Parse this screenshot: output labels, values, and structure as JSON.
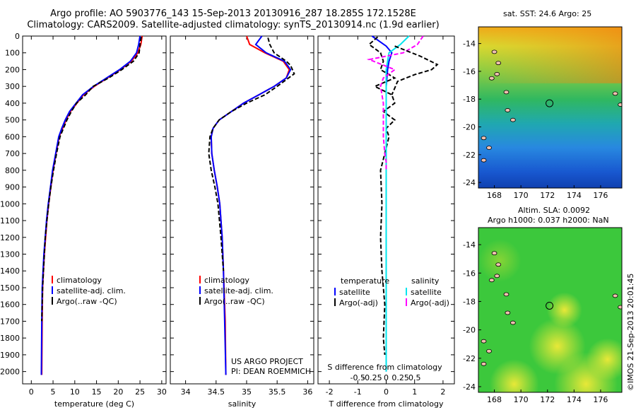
{
  "header": {
    "line1": "Argo profile: AO 5903776_143 15-Sep-2013 20130916_287 18.285S 172.1528E",
    "line2": "Climatology: CARS2009. Satellite-adjusted climatology: synTS_20130914.nc (1.9d earlier)"
  },
  "colors": {
    "climatology": "#ff0000",
    "satellite": "#0000ff",
    "argo": "#000000",
    "salinity_satellite": "#00e5ee",
    "salinity_argo": "#ff00ff"
  },
  "chart_data": [
    {
      "type": "line",
      "id": "temperature",
      "xlabel": "temperature (deg C)",
      "ylabel": "",
      "xlim": [
        -2,
        31
      ],
      "ylim": [
        2050,
        0
      ],
      "xticks": [
        0,
        5,
        10,
        15,
        20,
        25,
        30
      ],
      "xtick_labels": [
        "0",
        "5",
        "10",
        "15",
        "20",
        "25",
        "30"
      ],
      "yticks": [
        0,
        100,
        200,
        300,
        400,
        500,
        600,
        700,
        800,
        900,
        1000,
        1100,
        1200,
        1300,
        1400,
        1500,
        1600,
        1700,
        1800,
        1900,
        2000
      ],
      "ytick_labels": [
        "0",
        "100",
        "200",
        "300",
        "400",
        "500",
        "600",
        "700",
        "800",
        "900",
        "1000",
        "1100",
        "1200",
        "1300",
        "1400",
        "1500",
        "1600",
        "1700",
        "1800",
        "1900",
        "2000"
      ],
      "legend": [
        "climatology",
        "satellite-adj. clim.",
        "Argo(..raw -QC)"
      ],
      "series": [
        {
          "name": "climatology",
          "color": "#ff0000",
          "x": [
            25.5,
            25.2,
            24.5,
            23,
            20.5,
            17.5,
            14.5,
            12,
            10.5,
            9,
            8,
            7.2,
            6.4,
            5.7,
            5,
            4.5,
            4,
            3.6,
            3.3,
            3,
            2.8,
            2.6,
            2.5,
            2.4
          ],
          "y": [
            0,
            50,
            100,
            150,
            200,
            250,
            300,
            350,
            400,
            450,
            500,
            550,
            600,
            700,
            800,
            900,
            1000,
            1100,
            1200,
            1300,
            1400,
            1500,
            1700,
            2020
          ]
        },
        {
          "name": "satellite-adj. clim.",
          "color": "#0000ff",
          "x": [
            25,
            24.7,
            24.2,
            22.8,
            20.3,
            17.3,
            14.3,
            11.8,
            10.3,
            8.8,
            7.8,
            7,
            6.3,
            5.6,
            4.9,
            4.4,
            3.9,
            3.5,
            3.2,
            2.9,
            2.7,
            2.5,
            2.4,
            2.3
          ],
          "y": [
            0,
            50,
            100,
            150,
            200,
            250,
            300,
            350,
            400,
            450,
            500,
            550,
            600,
            700,
            800,
            900,
            1000,
            1100,
            1200,
            1300,
            1400,
            1500,
            1700,
            2020
          ]
        },
        {
          "name": "Argo(..raw -QC)",
          "color": "#000000",
          "x": [
            25.3,
            25,
            24.8,
            23.5,
            20.8,
            17.8,
            14.2,
            12.5,
            10.4,
            9.2,
            8.2,
            7.4,
            6.6,
            5.8,
            5.1,
            4.5,
            4,
            3.6,
            3.2,
            3,
            2.8,
            2.6,
            2.4
          ],
          "y": [
            5,
            50,
            100,
            150,
            200,
            250,
            300,
            350,
            400,
            450,
            500,
            550,
            600,
            700,
            800,
            900,
            1000,
            1100,
            1200,
            1300,
            1400,
            1500,
            1700
          ]
        }
      ]
    },
    {
      "type": "line",
      "id": "salinity",
      "xlabel": "salinity",
      "ylabel": "",
      "xlim": [
        33.75,
        36.1
      ],
      "ylim": [
        2050,
        0
      ],
      "xticks": [
        34,
        34.5,
        35,
        35.5,
        36
      ],
      "xtick_labels": [
        "34",
        "34.5",
        "35",
        "35.5",
        "36"
      ],
      "legend": [
        "climatology",
        "satellite-adj. clim.",
        "Argo(..raw -QC)"
      ],
      "annotation": [
        "US ARGO PROJECT",
        "PI: DEAN ROEMMICH"
      ],
      "series": [
        {
          "name": "climatology",
          "color": "#ff0000",
          "x": [
            35,
            35.05,
            35.3,
            35.6,
            35.7,
            35.65,
            35.45,
            35.2,
            34.95,
            34.75,
            34.55,
            34.45,
            34.42,
            34.43,
            34.47,
            34.52,
            34.56,
            34.6,
            34.62,
            34.65,
            34.66
          ],
          "y": [
            0,
            50,
            100,
            150,
            200,
            250,
            300,
            350,
            400,
            450,
            500,
            550,
            600,
            700,
            800,
            900,
            1000,
            1200,
            1400,
            1700,
            2020
          ]
        },
        {
          "name": "satellite-adj. clim.",
          "color": "#0000ff",
          "x": [
            35.25,
            35.15,
            35.32,
            35.62,
            35.72,
            35.65,
            35.45,
            35.2,
            34.95,
            34.75,
            34.55,
            34.45,
            34.42,
            34.43,
            34.47,
            34.52,
            34.56,
            34.6,
            34.62,
            34.64,
            34.66
          ],
          "y": [
            0,
            50,
            100,
            150,
            200,
            250,
            300,
            350,
            400,
            450,
            500,
            550,
            600,
            700,
            800,
            900,
            1000,
            1200,
            1400,
            1700,
            2020
          ]
        },
        {
          "name": "Argo(..raw -QC)",
          "color": "#000000",
          "x": [
            35.35,
            35.38,
            35.45,
            35.65,
            35.72,
            35.78,
            35.5,
            35.3,
            35,
            34.75,
            34.55,
            34.45,
            34.4,
            34.38,
            34.42,
            34.48,
            34.53,
            34.58,
            34.62
          ],
          "y": [
            10,
            50,
            100,
            150,
            175,
            225,
            300,
            350,
            400,
            450,
            500,
            550,
            600,
            700,
            800,
            900,
            1000,
            1200,
            1400
          ]
        }
      ]
    },
    {
      "type": "line",
      "id": "difference",
      "xlabel": "T difference from climatology",
      "xlabel_top": "S difference from climatology",
      "xlim": [
        -2.4,
        2.4
      ],
      "ylim": [
        2050,
        0
      ],
      "xticks": [
        -2,
        -1,
        0,
        1,
        2
      ],
      "xtick_labels": [
        "-2",
        "-1",
        "0",
        "1",
        "2"
      ],
      "sticks": [
        -1,
        -0.5,
        0,
        0.5,
        1
      ],
      "stick_labels": [
        "-0.5",
        "-0.25",
        "0",
        "0.25",
        "0.5"
      ],
      "legend_temperature": {
        "title": "temperature",
        "items": [
          "satellite",
          "Argo(-adj)"
        ]
      },
      "legend_salinity": {
        "title": "salinity",
        "items": [
          "satellite",
          "Argo(-adj)"
        ]
      },
      "series": [
        {
          "name": "temperature satellite",
          "color": "#0000ff",
          "x": [
            -0.5,
            0,
            0.2,
            0.1,
            0.05,
            0,
            0,
            0,
            0,
            0,
            0,
            0
          ],
          "y": [
            0,
            60,
            100,
            150,
            200,
            300,
            500,
            800,
            1100,
            1400,
            1700,
            2000
          ]
        },
        {
          "name": "temperature Argo(-adj)",
          "color": "#000000",
          "x": [
            -0.3,
            -0.6,
            -0.2,
            -0.1,
            -0.2,
            0.3,
            -0.4,
            0.2,
            0.3,
            -0.1,
            0.3,
            0,
            0.1,
            -0.2,
            -0.15,
            -0.2,
            -0.15,
            -0.05,
            -0.1,
            -0.05
          ],
          "y": [
            5,
            50,
            100,
            150,
            200,
            250,
            300,
            350,
            400,
            450,
            500,
            550,
            600,
            800,
            1000,
            1200,
            1400,
            1600,
            1800,
            1900
          ]
        },
        {
          "name": "salinity satellite",
          "color": "#00e5ee",
          "x": [
            0.8,
            0.5,
            0.1,
            0.05,
            0,
            0,
            0,
            0,
            0,
            0,
            0,
            0
          ],
          "y": [
            0,
            50,
            100,
            150,
            200,
            300,
            500,
            800,
            1100,
            1400,
            1700,
            2000
          ]
        },
        {
          "name": "salinity Argo(-adj)",
          "color": "#ff00ff",
          "x": [
            1.3,
            1.1,
            0.6,
            -0.6,
            0.3,
            -0.1,
            -0.2,
            -0.1,
            -0.1,
            -0.05,
            0,
            0
          ],
          "y": [
            0,
            50,
            100,
            140,
            200,
            250,
            300,
            400,
            600,
            700,
            750,
            800
          ]
        },
        {
          "name": "temperature Argo deep",
          "color": "#000000",
          "x": [
            0.3,
            1.2,
            1.8,
            1.6,
            1.0,
            0.4,
            0.3,
            0.2
          ],
          "y": [
            60,
            120,
            170,
            200,
            230,
            270,
            310,
            350
          ]
        }
      ]
    },
    {
      "type": "heatmap",
      "id": "sst-map",
      "title": "sat. SST: 24.6 Argo: 25",
      "xlim": [
        166.8,
        177.6
      ],
      "ylim": [
        -24.4,
        -12.8
      ],
      "xticks": [
        168,
        170,
        172,
        174,
        176
      ],
      "xtick_labels": [
        "168",
        "170",
        "172",
        "174",
        "176"
      ],
      "yticks": [
        -14,
        -16,
        -18,
        -20,
        -22,
        -24
      ],
      "ytick_labels": [
        "-14",
        "-16",
        "-18",
        "-20",
        "-22",
        "-24"
      ],
      "marker": [
        172.15,
        -18.3
      ]
    },
    {
      "type": "heatmap",
      "id": "sla-map",
      "title_line1": "Altim. SLA: 0.0092",
      "title_line2": "Argo h1000: 0.037 h2000: NaN",
      "xlim": [
        166.8,
        177.6
      ],
      "ylim": [
        -24.4,
        -12.8
      ],
      "xticks": [
        168,
        170,
        172,
        174,
        176
      ],
      "xtick_labels": [
        "168",
        "170",
        "172",
        "174",
        "176"
      ],
      "yticks": [
        -14,
        -16,
        -18,
        -20,
        -22,
        -24
      ],
      "ytick_labels": [
        "-14",
        "-16",
        "-18",
        "-20",
        "-22",
        "-24"
      ],
      "marker": [
        172.15,
        -18.3
      ]
    }
  ],
  "footer": {
    "timestamp": "©IMOS 21-Sep-2013 20:01:45"
  }
}
